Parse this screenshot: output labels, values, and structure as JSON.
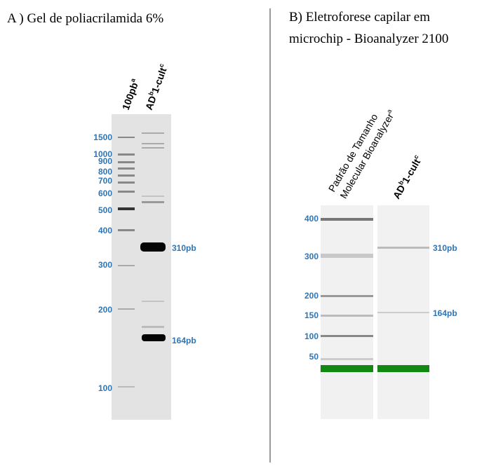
{
  "panel_a": {
    "title": "A ) Gel de poliacrilamida 6%",
    "lanes": [
      {
        "parts": [
          {
            "text": "100pb"
          },
          {
            "sup": "a"
          }
        ]
      },
      {
        "parts": [
          {
            "text": "AD"
          },
          {
            "sup": "b"
          },
          {
            "text": "1-cult"
          },
          {
            "sup": "c"
          }
        ]
      }
    ],
    "markers": [
      "1500",
      "1000",
      "900",
      "800",
      "700",
      "600",
      "500",
      "400",
      "300",
      "200",
      "100"
    ],
    "band_labels": [
      "310pb",
      "164pb"
    ]
  },
  "panel_b": {
    "title_lines": [
      "B)  Eletroforese  capilar  em",
      "microchip - Bioanalyzer 2100"
    ],
    "lanes": [
      {
        "lines": [
          "Padrão    de    Tamanho",
          "Molecular Bioanalyzer"
        ],
        "sup": "a"
      },
      {
        "parts": [
          {
            "text": "AD"
          },
          {
            "sup": "b"
          },
          {
            "text": "1-cult"
          },
          {
            "sup": "c"
          }
        ]
      }
    ],
    "markers": [
      "400",
      "300",
      "200",
      "150",
      "100",
      "50"
    ],
    "band_labels": [
      "310pb",
      "164pb"
    ]
  }
}
